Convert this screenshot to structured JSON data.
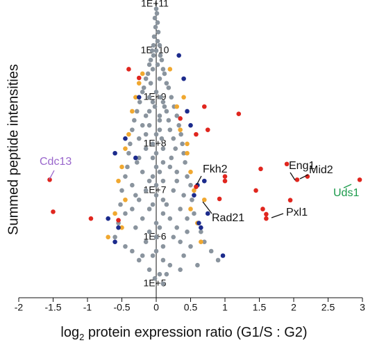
{
  "chart_data": {
    "type": "scatter",
    "y_label": "Summed peptide intensities",
    "x_label": {
      "main": "log",
      "sub": "2",
      "rest": " protein expression ratio (G1/S : G2)"
    },
    "xlim": [
      -2,
      3
    ],
    "xticks": [
      -2,
      -1.5,
      -1,
      -0.5,
      0,
      0.5,
      1,
      1.5,
      2,
      2.5,
      3
    ],
    "ylim": [
      50000,
      150000000000
    ],
    "log_y": true,
    "yticks": [
      {
        "value": 100000000000,
        "label": "1E+11"
      },
      {
        "value": 10000000000,
        "label": "1E+10"
      },
      {
        "value": 1000000000,
        "label": "1E+9"
      },
      {
        "value": 100000000,
        "label": "1E+8"
      },
      {
        "value": 10000000,
        "label": "1E+7"
      },
      {
        "value": 1000000,
        "label": "1E+6"
      },
      {
        "value": 100000,
        "label": "1E+5"
      }
    ],
    "series": [
      {
        "color": "#8a949e",
        "x": [
          0.0,
          0.01,
          -0.02,
          0.02,
          -0.01,
          0.03,
          -0.03,
          0.02,
          -0.04,
          0.05,
          0,
          -0.06,
          0.06,
          -0.04,
          -0.08,
          0.08,
          0.02,
          -0.1,
          0.1,
          -0.05,
          -0.12,
          0.12,
          0.05,
          -0.15,
          0.15,
          -0.08,
          -0.18,
          0.18,
          0,
          -0.2,
          0.22,
          -0.1,
          0.06,
          0.1,
          -0.24,
          -0.05,
          0.26,
          -0.02,
          0.12,
          -0.28,
          0.15,
          -0.1,
          0.3,
          -0.15,
          0.05,
          0.05,
          -0.32,
          0.18,
          0.33,
          -0.1,
          -0.2,
          -0.35,
          0.2,
          0.05,
          0,
          0.36,
          -0.15,
          -0.25,
          0.25,
          0.08,
          0.38,
          -0.38,
          -0.05,
          0.1,
          -0.15,
          0.28,
          0.4,
          -0.4,
          0.0,
          -0.05,
          0.22,
          -0.25,
          0.42,
          -0.28,
          0.1,
          0,
          -0.42,
          0.2,
          0.3,
          -0.2,
          0.05,
          0.45,
          -0.45,
          -0.05,
          0.1,
          -0.1,
          0.3,
          0.5,
          -0.35,
          0.0,
          0.25,
          -0.5,
          -0.15,
          0,
          0.4,
          -0.3,
          -0.25,
          0.52,
          0.1,
          -0.52,
          0.15,
          -0.05,
          0.35,
          -0.1,
          -0.35,
          0.55,
          -0.45,
          0.1,
          -0.2,
          0.2,
          0.45,
          0.6,
          -0.55,
          0.0,
          0.05,
          -0.3,
          0.3,
          0.45,
          0.65,
          -0.1,
          -0.6,
          0.25,
          0.0,
          0.7,
          -0.15,
          0.35,
          0.1,
          -0.45,
          0.5,
          0.8,
          -0.35,
          0.0,
          0.4,
          -0.05,
          -0.2,
          0.9,
          -0.25,
          0.1,
          0.2,
          0.6,
          -0.1,
          0.35,
          0.05,
          0.15,
          -0.02,
          0.1
        ],
        "values": [
          79000000000.0,
          63000000000.0,
          50000000000.0,
          40000000000.0,
          32000000000.0,
          25000000000.0,
          20000000000.0,
          16000000000.0,
          13000000000.0,
          13000000000.0,
          10000000000.0,
          10000000000.0,
          7900000000.0,
          7900000000.0,
          6300000000.0,
          6300000000.0,
          5000000000.0,
          5000000000.0,
          4000000000.0,
          4000000000.0,
          3200000000.0,
          3200000000.0,
          2500000000.0,
          2500000000.0,
          2000000000.0,
          2000000000.0,
          1600000000.0,
          1600000000.0,
          1300000000.0,
          1300000000.0,
          1000000000.0,
          1000000000.0,
          1000000000.0,
          790000000.0,
          790000000.0,
          790000000.0,
          630000000.0,
          630000000.0,
          630000000.0,
          500000000.0,
          500000000.0,
          500000000.0,
          400000000.0,
          400000000.0,
          400000000.0,
          320000000.0,
          320000000.0,
          320000000.0,
          250000000.0,
          250000000.0,
          250000000.0,
          200000000.0,
          200000000.0,
          200000000.0,
          160000000.0,
          160000000.0,
          160000000.0,
          130000000.0,
          130000000.0,
          130000000.0,
          100000000.0,
          100000000.0,
          100000000.0,
          79000000.0,
          79000000.0,
          79000000.0,
          63000000.0,
          63000000.0,
          63000000.0,
          50000000.0,
          50000000.0,
          50000000.0,
          40000000.0,
          40000000.0,
          40000000.0,
          32000000.0,
          32000000.0,
          32000000.0,
          25000000.0,
          25000000.0,
          25000000.0,
          20000000.0,
          20000000.0,
          20000000.0,
          16000000.0,
          16000000.0,
          16000000.0,
          13000000.0,
          13000000.0,
          13000000.0,
          10000000.0,
          10000000.0,
          10000000.0,
          7900000.0,
          7900000.0,
          7900000.0,
          6300000.0,
          6300000.0,
          6300000.0,
          5000000.0,
          5000000.0,
          5000000.0,
          4000000.0,
          4000000.0,
          4000000.0,
          3200000.0,
          3200000.0,
          3200000.0,
          2500000.0,
          2500000.0,
          2500000.0,
          2000000.0,
          2000000.0,
          2000000.0,
          1600000.0,
          1600000.0,
          1600000.0,
          1300000.0,
          1300000.0,
          1300000.0,
          1000000.0,
          1000000.0,
          1000000.0,
          790000.0,
          790000.0,
          790000.0,
          630000.0,
          630000.0,
          630000.0,
          500000.0,
          500000.0,
          500000.0,
          400000.0,
          400000.0,
          400000.0,
          320000.0,
          320000.0,
          320000.0,
          250000.0,
          250000.0,
          200000.0,
          200000.0,
          160000.0,
          160000.0,
          130000.0,
          100000.0
        ]
      },
      {
        "color": "#f0a830",
        "x": [
          -0.35,
          -0.4,
          -0.45,
          -0.5,
          -0.55,
          -0.45,
          -0.6,
          -0.5,
          -0.3,
          -0.2,
          0.3,
          0.35,
          0.45,
          0.5,
          0.55,
          0.5,
          0.6,
          0.65,
          0.4,
          0.2,
          -0.7,
          0.7,
          -0.25,
          0.45
        ],
        "values": [
          500000000.0,
          160000000.0,
          79000000.0,
          32000000.0,
          16000000.0,
          6300000.0,
          3200000.0,
          1600000.0,
          1000000000.0,
          3200000000.0,
          630000000.0,
          200000000.0,
          63000000.0,
          25000000.0,
          10000000.0,
          4000000.0,
          2000000.0,
          790000.0,
          1000000000.0,
          4000000000.0,
          1000000.0,
          6300000.0,
          2000000000.0,
          100000000.0
        ]
      },
      {
        "color": "#1c2b8c",
        "x": [
          0.33,
          0.45,
          0.5,
          -0.45,
          -0.6,
          -0.7,
          -0.6,
          -0.55,
          0.7,
          0.55,
          0.62,
          0.97,
          0.75,
          0.6,
          -0.25,
          0.4,
          -0.3,
          0.65
        ],
        "values": [
          7900000000.0,
          500000000.0,
          250000000.0,
          130000000.0,
          63000000.0,
          2500000.0,
          790000.0,
          1600000.0,
          16000000.0,
          7900000.0,
          2000000.0,
          400000.0,
          3200000.0,
          13000000.0,
          1000000000.0,
          2500000000.0,
          50000000.0,
          1600000.0
        ]
      },
      {
        "color": "#e0261e",
        "x": [
          -1.55,
          -1.5,
          -0.95,
          -0.55,
          -0.4,
          -0.25,
          0.35,
          0.58,
          0.7,
          1.2,
          1.0,
          1.52,
          1.55,
          1.9,
          2.05,
          2.2,
          2.96,
          1.45,
          0.92,
          0.75,
          1.6,
          1.6,
          1.95,
          0.58,
          1.0
        ],
        "values": [
          17000000.0,
          3500000.0,
          2500000.0,
          2300000.0,
          4000000000.0,
          2600000000.0,
          350000000.0,
          160000000.0,
          630000000.0,
          440000000.0,
          20000000.0,
          29000000.0,
          4000000.0,
          37000000.0,
          17000000.0,
          20000000.0,
          17000000.0,
          10000000.0,
          6600000.0,
          200000000.0,
          3100000.0,
          2500000.0,
          6200000.0,
          12000000.0,
          16000000.0
        ]
      }
    ],
    "annotations": [
      {
        "text": "Cdc13",
        "color": "#9966cc"
      },
      {
        "text": "Eng1",
        "color": "#111111"
      },
      {
        "text": "Mid2",
        "color": "#111111"
      },
      {
        "text": "Uds1",
        "color": "#1a9a4a"
      },
      {
        "text": "Fkh2",
        "color": "#111111"
      },
      {
        "text": "Rad21",
        "color": "#111111"
      },
      {
        "text": "Pxl1",
        "color": "#111111"
      }
    ]
  }
}
